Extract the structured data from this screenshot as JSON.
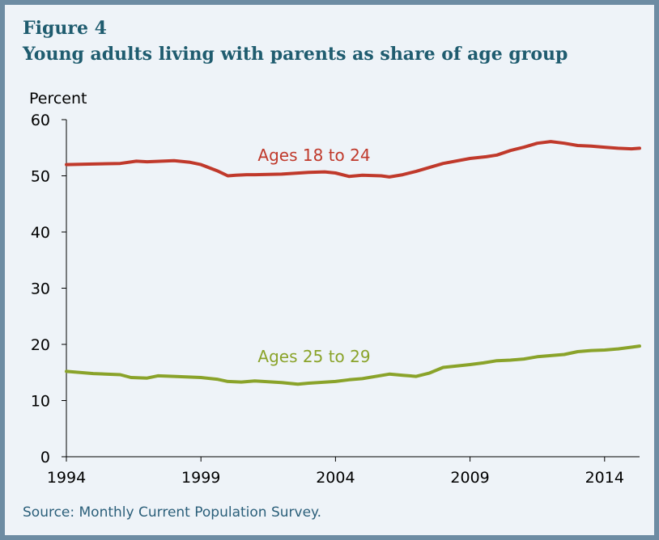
{
  "figure_label": "Figure 4",
  "title": "Young adults living with parents as share of age group",
  "source": "Source: Monthly Current Population Survey.",
  "colors": {
    "background_frame": "#6d8ca3",
    "panel": "#eef3f8",
    "title": "#1f5c6f",
    "series_18_24": "#c0392b",
    "series_25_29": "#8aa32a",
    "axis": "#000000"
  },
  "chart_data": {
    "type": "line",
    "ylabel": "Percent",
    "xlabel": "",
    "ylim": [
      0,
      60
    ],
    "xlim": [
      1994,
      2015.3
    ],
    "yticks": [
      0,
      10,
      20,
      30,
      40,
      50,
      60
    ],
    "xticks": [
      1994,
      1999,
      2004,
      2009,
      2014
    ],
    "grid": false,
    "legend": "inline labels",
    "series": [
      {
        "name": "Ages 18 to 24",
        "color": "#c0392b",
        "x": [
          1994,
          1995,
          1996,
          1996.6,
          1997,
          1998,
          1998.6,
          1999,
          1999.6,
          2000,
          2000.3,
          2000.7,
          2001,
          2002,
          2003,
          2003.6,
          2004,
          2004.5,
          2005,
          2005.7,
          2006,
          2006.5,
          2007,
          2007.5,
          2008,
          2009,
          2009.6,
          2010,
          2010.5,
          2011,
          2011.5,
          2012,
          2012.5,
          2013,
          2013.5,
          2014,
          2014.5,
          2015,
          2015.3
        ],
        "y": [
          52.0,
          52.1,
          52.2,
          52.6,
          52.5,
          52.7,
          52.4,
          52.0,
          50.9,
          50.0,
          50.1,
          50.2,
          50.2,
          50.3,
          50.6,
          50.7,
          50.5,
          49.9,
          50.1,
          50.0,
          49.8,
          50.2,
          50.8,
          51.5,
          52.2,
          53.1,
          53.4,
          53.7,
          54.5,
          55.1,
          55.8,
          56.1,
          55.8,
          55.4,
          55.3,
          55.1,
          54.9,
          54.8,
          54.9
        ]
      },
      {
        "name": "Ages 25 to 29",
        "color": "#8aa32a",
        "x": [
          1994,
          1995,
          1996,
          1996.4,
          1997,
          1997.4,
          1998,
          1999,
          1999.6,
          2000,
          2000.5,
          2001,
          2002,
          2002.6,
          2003,
          2004,
          2004.5,
          2005,
          2006,
          2006.5,
          2007,
          2007.5,
          2008,
          2009,
          2009.5,
          2010,
          2010.5,
          2011,
          2011.5,
          2012,
          2012.5,
          2013,
          2013.5,
          2014,
          2014.5,
          2015,
          2015.3
        ],
        "y": [
          15.2,
          14.8,
          14.6,
          14.1,
          14.0,
          14.4,
          14.3,
          14.1,
          13.8,
          13.4,
          13.3,
          13.5,
          13.2,
          12.9,
          13.1,
          13.4,
          13.7,
          13.9,
          14.7,
          14.5,
          14.3,
          14.9,
          15.9,
          16.4,
          16.7,
          17.1,
          17.2,
          17.4,
          17.8,
          18.0,
          18.2,
          18.7,
          18.9,
          19.0,
          19.2,
          19.5,
          19.7
        ]
      }
    ],
    "annotations": [
      {
        "text": "Ages 18 to 24",
        "series": "Ages 18 to 24"
      },
      {
        "text": "Ages 25 to 29",
        "series": "Ages 25 to 29"
      }
    ]
  }
}
